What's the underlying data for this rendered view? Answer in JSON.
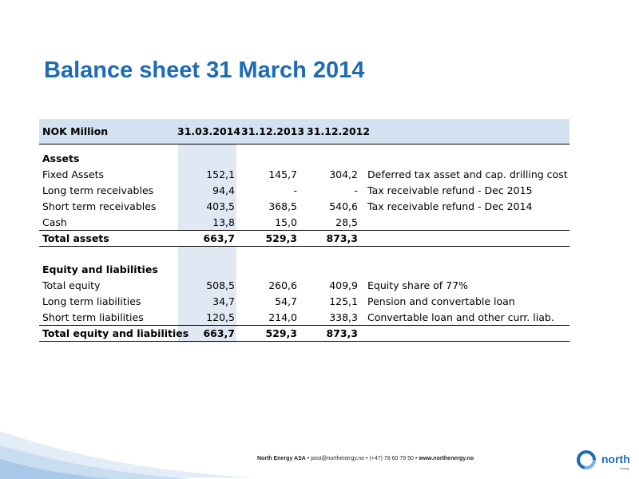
{
  "title": "Balance sheet 31 March 2014",
  "table": {
    "header": {
      "label": "NOK Million",
      "col1": "31.03.2014",
      "col2": "31.12.2013",
      "col3": "31.12.2012"
    },
    "assets": {
      "heading": "Assets",
      "rows": [
        {
          "label": "Fixed Assets",
          "v1": "152,1",
          "v2": "145,7",
          "v3": "304,2",
          "note": "Deferred tax asset and cap. drilling cost"
        },
        {
          "label": "Long term receivables",
          "v1": "94,4",
          "v2": "-",
          "v3": "-",
          "note": "Tax receivable refund - Dec 2015"
        },
        {
          "label": "Short term receivables",
          "v1": "403,5",
          "v2": "368,5",
          "v3": "540,6",
          "note": "Tax receivable refund - Dec 2014"
        },
        {
          "label": "Cash",
          "v1": "13,8",
          "v2": "15,0",
          "v3": "28,5",
          "note": ""
        }
      ],
      "total": {
        "label": "Total assets",
        "v1": "663,7",
        "v2": "529,3",
        "v3": "873,3"
      }
    },
    "equity": {
      "heading": "Equity and liabilities",
      "rows": [
        {
          "label": "Total equity",
          "v1": "508,5",
          "v2": "260,6",
          "v3": "409,9",
          "note": "Equity share of 77%"
        },
        {
          "label": "Long term liabilities",
          "v1": "34,7",
          "v2": "54,7",
          "v3": "125,1",
          "note": "Pension and convertable loan"
        },
        {
          "label": "Short term liabilities",
          "v1": "120,5",
          "v2": "214,0",
          "v3": "338,3",
          "note": "Convertable loan and other curr. liab."
        }
      ],
      "total": {
        "label": "Total equity and liabilities",
        "v1": "663,7",
        "v2": "529,3",
        "v3": "873,3"
      }
    }
  },
  "footer": {
    "company": "North Energy ASA",
    "email": "post@northenergy.no",
    "phone": "(+47) 78 60 79 50",
    "website": "www.northenergy.no",
    "separator": "•"
  },
  "logo": {
    "word": "north",
    "sub": "energy"
  },
  "colors": {
    "title": "#1f6bb5",
    "header_bg": "#d4e1f0",
    "column_shade": "#dfe8f3"
  }
}
